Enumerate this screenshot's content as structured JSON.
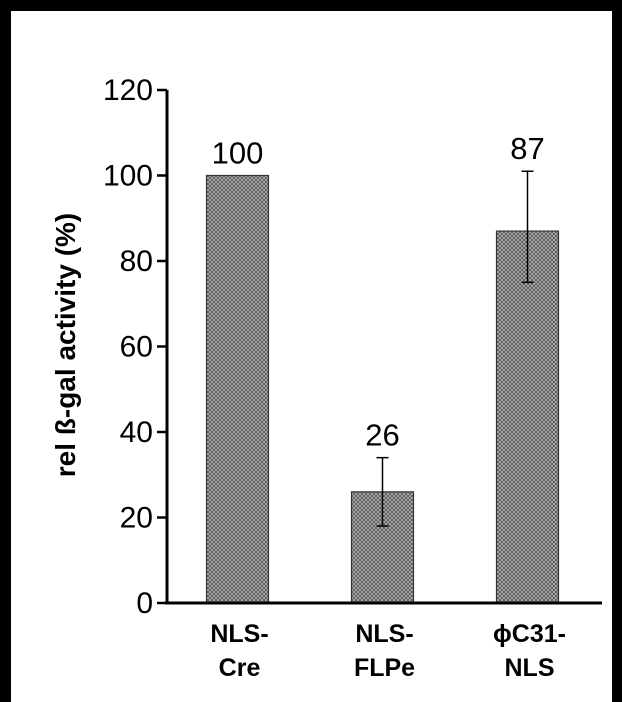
{
  "chart_data": {
    "type": "bar",
    "title": "",
    "xlabel": "",
    "ylabel": "rel ß-gal activity (%)",
    "ylim": [
      0,
      120
    ],
    "yticks": [
      0,
      20,
      40,
      60,
      80,
      100,
      120
    ],
    "grid": false,
    "legend": "none",
    "categories": [
      [
        "NLS-",
        "Cre"
      ],
      [
        "NLS-",
        "FLPe"
      ],
      [
        "ϕC31-",
        "NLS"
      ]
    ],
    "values": [
      100,
      26,
      87
    ],
    "error": [
      null,
      [
        18,
        34
      ],
      [
        75,
        101
      ]
    ],
    "value_labels": [
      "100",
      "26",
      "87"
    ],
    "bar_fill": "#9a9a9a",
    "bar_pattern": "crosshatch",
    "axis_color": "#000000"
  }
}
